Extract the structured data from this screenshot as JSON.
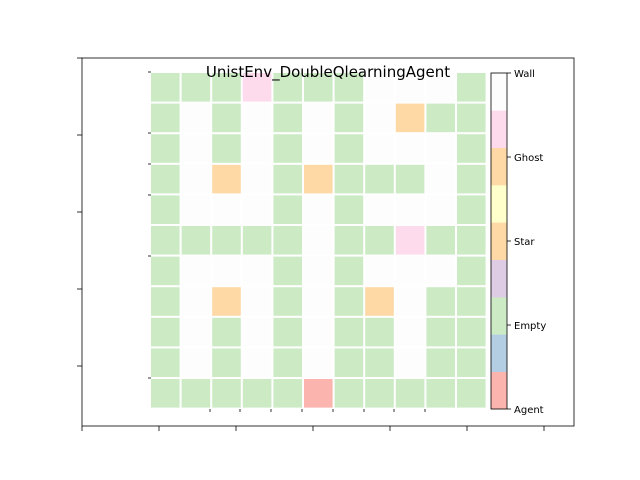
{
  "title": "UnistEnv_DoubleQlearningAgent",
  "colorbar": {
    "labels": [
      "Agent",
      "Empty",
      "Star",
      "Ghost",
      "Wall"
    ],
    "swatches": [
      "#fbb4ae",
      "#b3cde3",
      "#ccebc5",
      "#decbe4",
      "#fed9a6",
      "#ffffcc",
      "#fed9a6",
      "#fddaec",
      "#fdfdfd"
    ]
  },
  "palette": {
    "empty": "#ccebc5",
    "ghost": "#fed9a6",
    "star": "#fddaec",
    "agent": "#fbb4ae",
    "wall": "#fdfdfd"
  },
  "grid": {
    "legend": {
      "E": "empty",
      "G": "ghost",
      "S": "star",
      "A": "agent",
      ".": "wall"
    },
    "rows": [
      "EEESEEE...E",
      "E.E.E.E.GEE",
      "E.E.E.E...E",
      "E.G.EGEEE.E",
      "E...E.E...E",
      "EEEEE.EESEE",
      "E...E.E...E",
      "E.G.E.EG.EE",
      "E.E.E.EE.EE",
      "E.E.E.EE.EE",
      "EEEEEAEEEEE"
    ]
  }
}
